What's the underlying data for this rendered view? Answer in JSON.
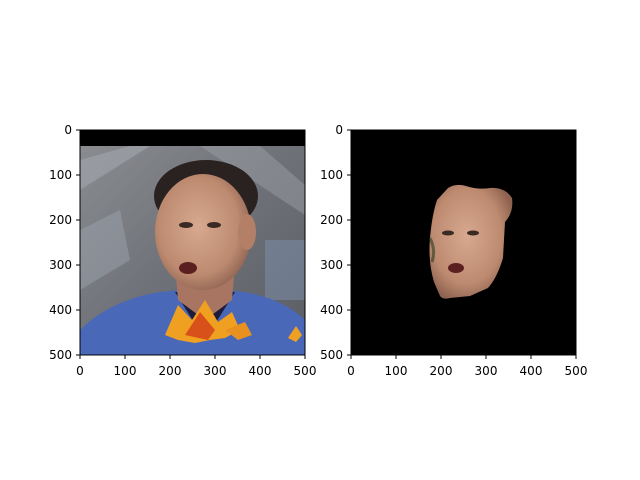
{
  "panels": [
    {
      "id": "left",
      "image_name": "face-photo-with-leaves",
      "x_ticks": [
        "0",
        "100",
        "200",
        "300",
        "400",
        "500"
      ],
      "y_ticks": [
        "0",
        "100",
        "200",
        "300",
        "400",
        "500"
      ]
    },
    {
      "id": "right",
      "image_name": "segmented-face-mask",
      "x_ticks": [
        "0",
        "100",
        "200",
        "300",
        "400",
        "500"
      ],
      "y_ticks": [
        "0",
        "100",
        "200",
        "300",
        "400",
        "500"
      ]
    }
  ],
  "colors": {
    "background": "#ffffff",
    "axis": "#000000",
    "mask_background": "#000000",
    "shirt": "#4a68b8",
    "skin": "#c9967c",
    "hair": "#2a2220",
    "leaf_orange": "#f0a020",
    "leaf_red": "#d8501a"
  }
}
